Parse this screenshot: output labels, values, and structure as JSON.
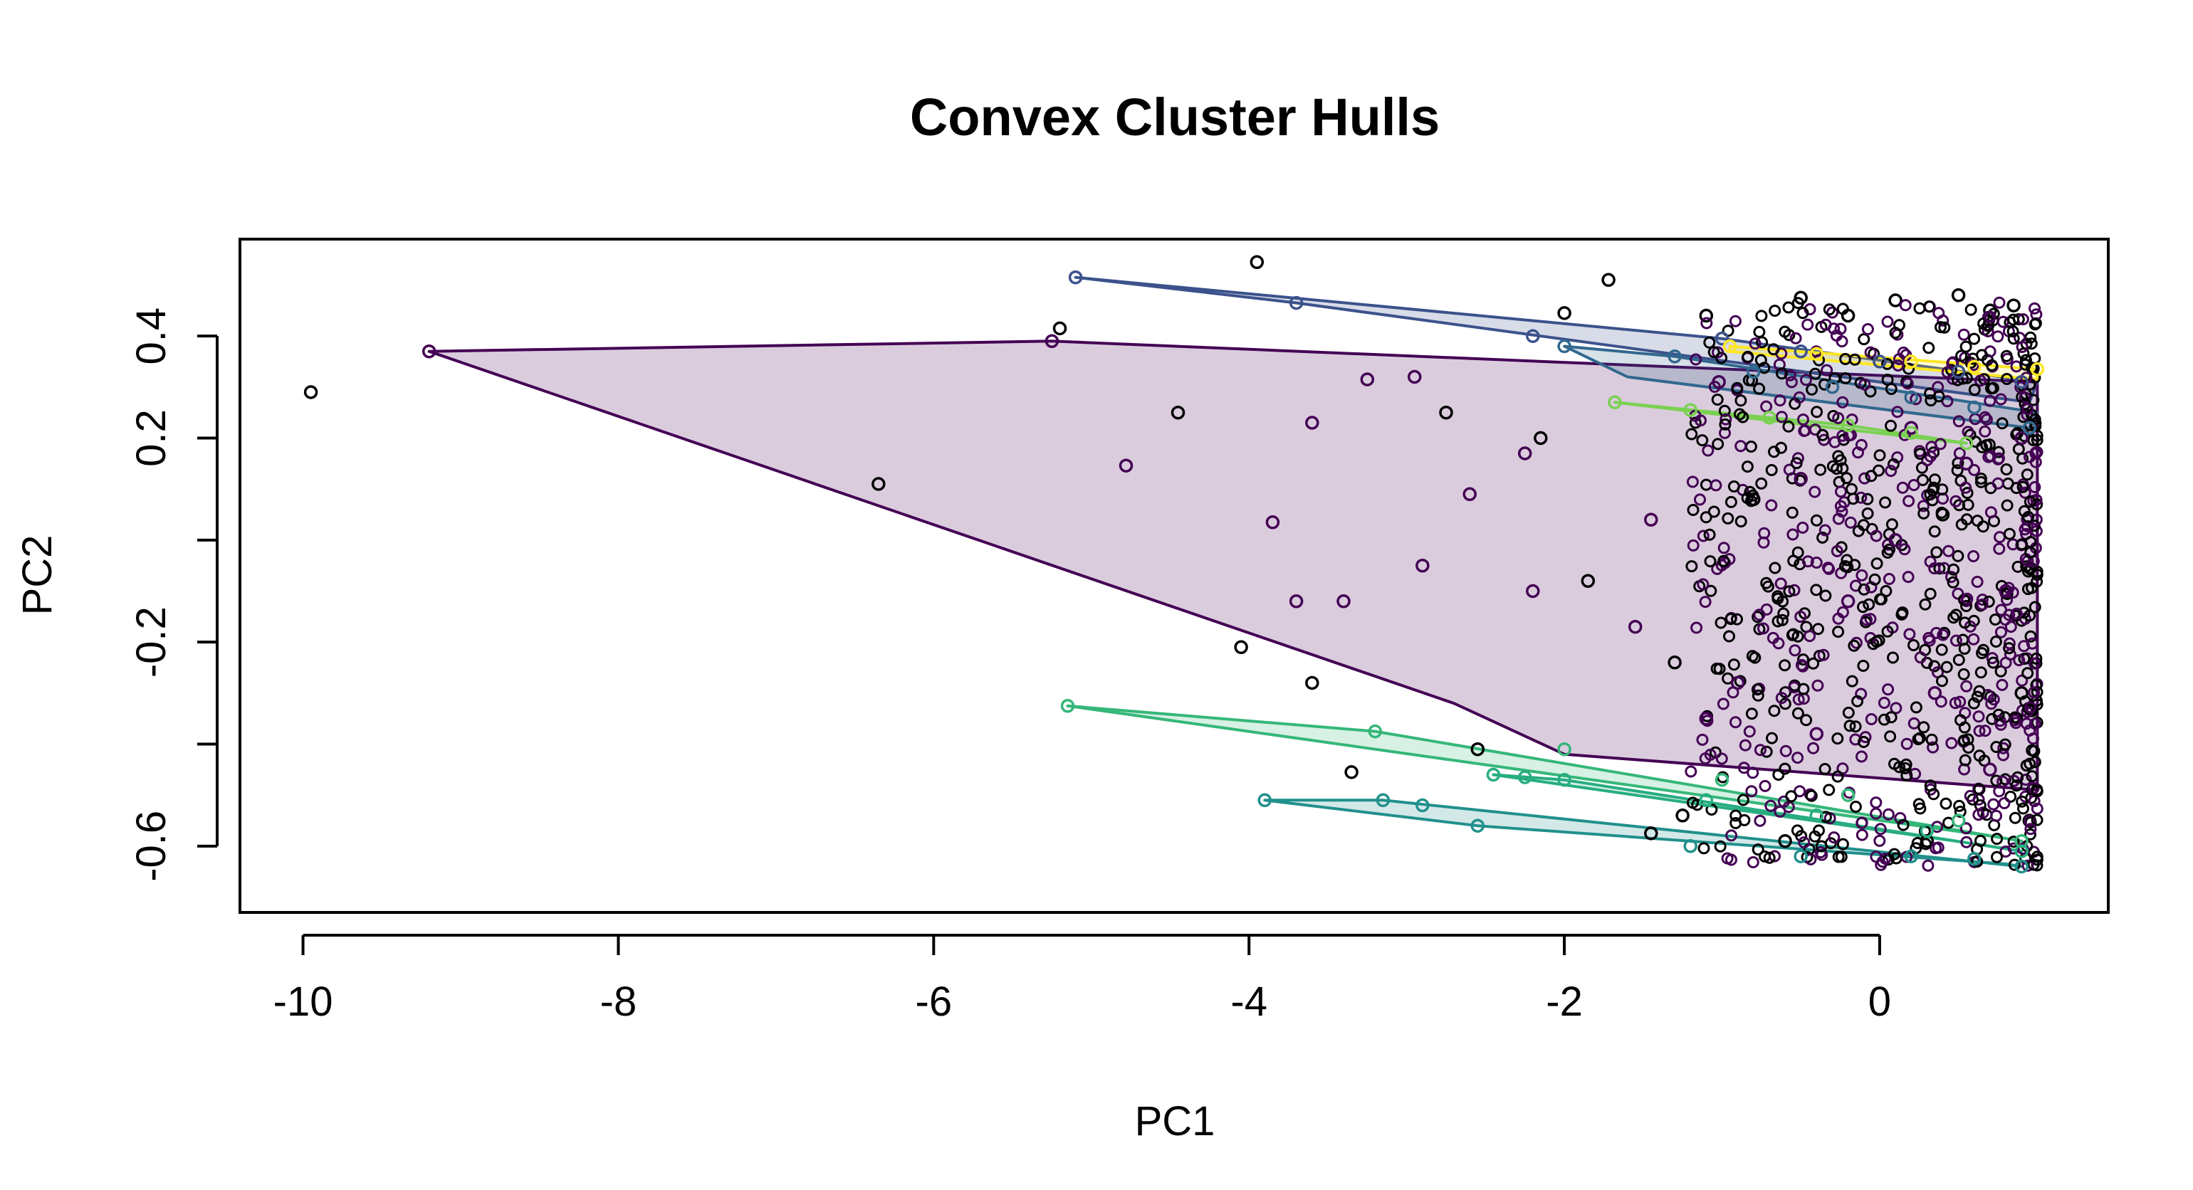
{
  "chart_data": {
    "type": "scatter",
    "title": "Convex Cluster Hulls",
    "xlabel": "PC1",
    "ylabel": "PC2",
    "xlim": [
      -10.4,
      1.45
    ],
    "ylim": [
      -0.73,
      0.59
    ],
    "x_ticks": [
      -10,
      -8,
      -6,
      -4,
      -2,
      0
    ],
    "x_tick_labels": [
      "-10",
      "-8",
      "-6",
      "-4",
      "-2",
      "0"
    ],
    "y_ticks": [
      -0.6,
      -0.4,
      -0.2,
      0.0,
      0.2,
      0.4
    ],
    "y_tick_labels": [
      "-0.6",
      "",
      "-0.2",
      "",
      "0.2",
      "0.4"
    ],
    "grid": false,
    "legend": "none",
    "clusters": [
      {
        "id": 1,
        "color": "#440154",
        "fill": "rgba(68,1,84,0.2)",
        "hull": [
          [
            -9.2,
            0.37
          ],
          [
            -5.25,
            0.39
          ],
          [
            1.0,
            0.31
          ],
          [
            1.0,
            -0.49
          ],
          [
            -2.0,
            -0.42
          ],
          [
            -2.7,
            -0.32
          ],
          [
            -9.2,
            0.37
          ]
        ],
        "points": [
          [
            -9.2,
            0.37
          ],
          [
            -5.25,
            0.39
          ],
          [
            -4.78,
            0.146
          ],
          [
            -3.25,
            0.315
          ],
          [
            -2.95,
            0.32
          ],
          [
            -1.02,
            0.31
          ],
          [
            -2.25,
            0.17
          ],
          [
            -3.6,
            0.23
          ],
          [
            -3.85,
            0.035
          ],
          [
            -3.7,
            -0.12
          ],
          [
            -2.6,
            0.09
          ],
          [
            -2.2,
            -0.1
          ],
          [
            -1.55,
            -0.17
          ],
          [
            -1.45,
            0.04
          ],
          [
            -0.9,
            -0.28
          ],
          [
            -0.4,
            -0.38
          ],
          [
            -0.2,
            -0.12
          ],
          [
            0.1,
            0.0
          ],
          [
            0.35,
            -0.3
          ],
          [
            0.55,
            0.15
          ],
          [
            0.7,
            -0.45
          ],
          [
            0.9,
            0.2
          ],
          [
            -1.1,
            -0.35
          ],
          [
            -0.5,
            0.12
          ],
          [
            0.2,
            0.22
          ],
          [
            0.8,
            -0.1
          ],
          [
            -2.9,
            -0.05
          ],
          [
            -3.4,
            -0.12
          ]
        ]
      },
      {
        "id": 2,
        "color": "#3b528b",
        "fill": "rgba(59,82,139,0.2)",
        "hull": [
          [
            -5.1,
            0.515
          ],
          [
            -1.0,
            0.395
          ],
          [
            1.0,
            0.31
          ],
          [
            0.95,
            0.27
          ],
          [
            -3.7,
            0.465
          ],
          [
            -5.1,
            0.515
          ]
        ],
        "points": [
          [
            -5.1,
            0.515
          ],
          [
            -3.7,
            0.465
          ],
          [
            -2.2,
            0.4
          ],
          [
            -1.0,
            0.395
          ],
          [
            -0.5,
            0.37
          ],
          [
            0.0,
            0.35
          ],
          [
            0.5,
            0.33
          ],
          [
            0.9,
            0.31
          ]
        ]
      },
      {
        "id": 3,
        "color": "#31688e",
        "fill": "rgba(49,104,142,0.2)",
        "hull": [
          [
            -2.0,
            0.38
          ],
          [
            -1.3,
            0.36
          ],
          [
            1.0,
            0.25
          ],
          [
            0.95,
            0.22
          ],
          [
            -1.6,
            0.32
          ],
          [
            -2.0,
            0.38
          ]
        ],
        "points": [
          [
            -2.0,
            0.38
          ],
          [
            -1.3,
            0.36
          ],
          [
            -0.8,
            0.33
          ],
          [
            -0.3,
            0.3
          ],
          [
            0.2,
            0.28
          ],
          [
            0.6,
            0.26
          ],
          [
            0.95,
            0.22
          ]
        ]
      },
      {
        "id": 4,
        "color": "#21908c",
        "fill": "rgba(33,144,140,0.2)",
        "hull": [
          [
            -3.9,
            -0.51
          ],
          [
            -3.15,
            -0.51
          ],
          [
            0.9,
            -0.64
          ],
          [
            0.8,
            -0.635
          ],
          [
            -2.55,
            -0.56
          ],
          [
            -3.9,
            -0.51
          ]
        ],
        "points": [
          [
            -3.9,
            -0.51
          ],
          [
            -3.15,
            -0.51
          ],
          [
            -2.9,
            -0.52
          ],
          [
            -2.55,
            -0.56
          ],
          [
            -1.2,
            -0.6
          ],
          [
            -0.5,
            -0.62
          ],
          [
            0.2,
            -0.62
          ],
          [
            0.6,
            -0.625
          ],
          [
            0.9,
            -0.64
          ]
        ]
      },
      {
        "id": 5,
        "color": "#35b779",
        "fill": "rgba(53,183,121,0.2)",
        "hull": [
          [
            -5.15,
            -0.325
          ],
          [
            -3.2,
            -0.375
          ],
          [
            0.9,
            -0.59
          ],
          [
            0.7,
            -0.58
          ],
          [
            -5.15,
            -0.325
          ]
        ],
        "points": [
          [
            -5.15,
            -0.325
          ],
          [
            -3.2,
            -0.375
          ],
          [
            -2.0,
            -0.41
          ],
          [
            -1.0,
            -0.47
          ],
          [
            -0.2,
            -0.5
          ],
          [
            0.5,
            -0.55
          ],
          [
            0.9,
            -0.59
          ]
        ]
      },
      {
        "id": 6,
        "color": "#27ad81",
        "fill": "rgba(39,173,129,0.2)",
        "hull": [
          [
            -2.45,
            -0.46
          ],
          [
            -2.0,
            -0.47
          ],
          [
            0.9,
            -0.61
          ],
          [
            0.7,
            -0.6
          ],
          [
            -2.45,
            -0.46
          ]
        ],
        "points": [
          [
            -2.45,
            -0.46
          ],
          [
            -2.25,
            -0.465
          ],
          [
            -2.0,
            -0.47
          ],
          [
            -1.1,
            -0.51
          ],
          [
            -0.4,
            -0.54
          ],
          [
            0.3,
            -0.57
          ],
          [
            0.9,
            -0.61
          ]
        ]
      },
      {
        "id": 7,
        "color": "#7ad151",
        "fill": "rgba(122,209,81,0.2)",
        "hull": [
          [
            -1.68,
            0.27
          ],
          [
            -0.2,
            0.225
          ],
          [
            0.55,
            0.19
          ],
          [
            0.4,
            0.195
          ],
          [
            -1.68,
            0.27
          ]
        ],
        "points": [
          [
            -1.68,
            0.27
          ],
          [
            -1.2,
            0.255
          ],
          [
            -0.7,
            0.24
          ],
          [
            -0.2,
            0.225
          ],
          [
            0.2,
            0.21
          ],
          [
            0.55,
            0.19
          ]
        ]
      },
      {
        "id": 8,
        "color": "#fde725",
        "fill": "rgba(253,231,37,0.2)",
        "hull": [
          [
            -0.95,
            0.38
          ],
          [
            1.0,
            0.335
          ],
          [
            1.0,
            0.315
          ],
          [
            -0.95,
            0.37
          ],
          [
            -0.95,
            0.38
          ]
        ],
        "points": [
          [
            -0.95,
            0.38
          ],
          [
            -0.4,
            0.365
          ],
          [
            0.2,
            0.35
          ],
          [
            0.6,
            0.34
          ],
          [
            1.0,
            0.335
          ]
        ]
      }
    ],
    "noise_points": [
      [
        -9.95,
        0.29
      ],
      [
        -6.35,
        0.11
      ],
      [
        -4.45,
        0.25
      ],
      [
        -4.05,
        -0.21
      ],
      [
        -3.6,
        -0.28
      ],
      [
        -3.95,
        0.545
      ],
      [
        -5.2,
        0.415
      ],
      [
        -3.35,
        -0.455
      ],
      [
        -2.55,
        -0.41
      ],
      [
        -1.72,
        0.51
      ],
      [
        -2.0,
        0.445
      ],
      [
        -1.1,
        0.44
      ],
      [
        -0.5,
        0.475
      ],
      [
        0.1,
        0.47
      ],
      [
        0.5,
        0.48
      ],
      [
        0.85,
        0.46
      ],
      [
        -0.6,
        -0.59
      ],
      [
        0.3,
        -0.59
      ],
      [
        -1.25,
        -0.54
      ],
      [
        -2.15,
        0.2
      ],
      [
        -1.85,
        -0.08
      ],
      [
        -2.75,
        0.25
      ],
      [
        -1.3,
        -0.24
      ],
      [
        0.95,
        -0.55
      ],
      [
        0.7,
        0.45
      ],
      [
        -0.2,
        0.44
      ],
      [
        -1.45,
        -0.575
      ],
      [
        0.4,
        0.05
      ],
      [
        0.9,
        -0.3
      ],
      [
        -0.8,
        0.08
      ]
    ],
    "dense_band": {
      "x_from": -1.2,
      "x_to": 1.0,
      "y_from": -0.64,
      "y_to": 0.47,
      "count": 900
    }
  }
}
